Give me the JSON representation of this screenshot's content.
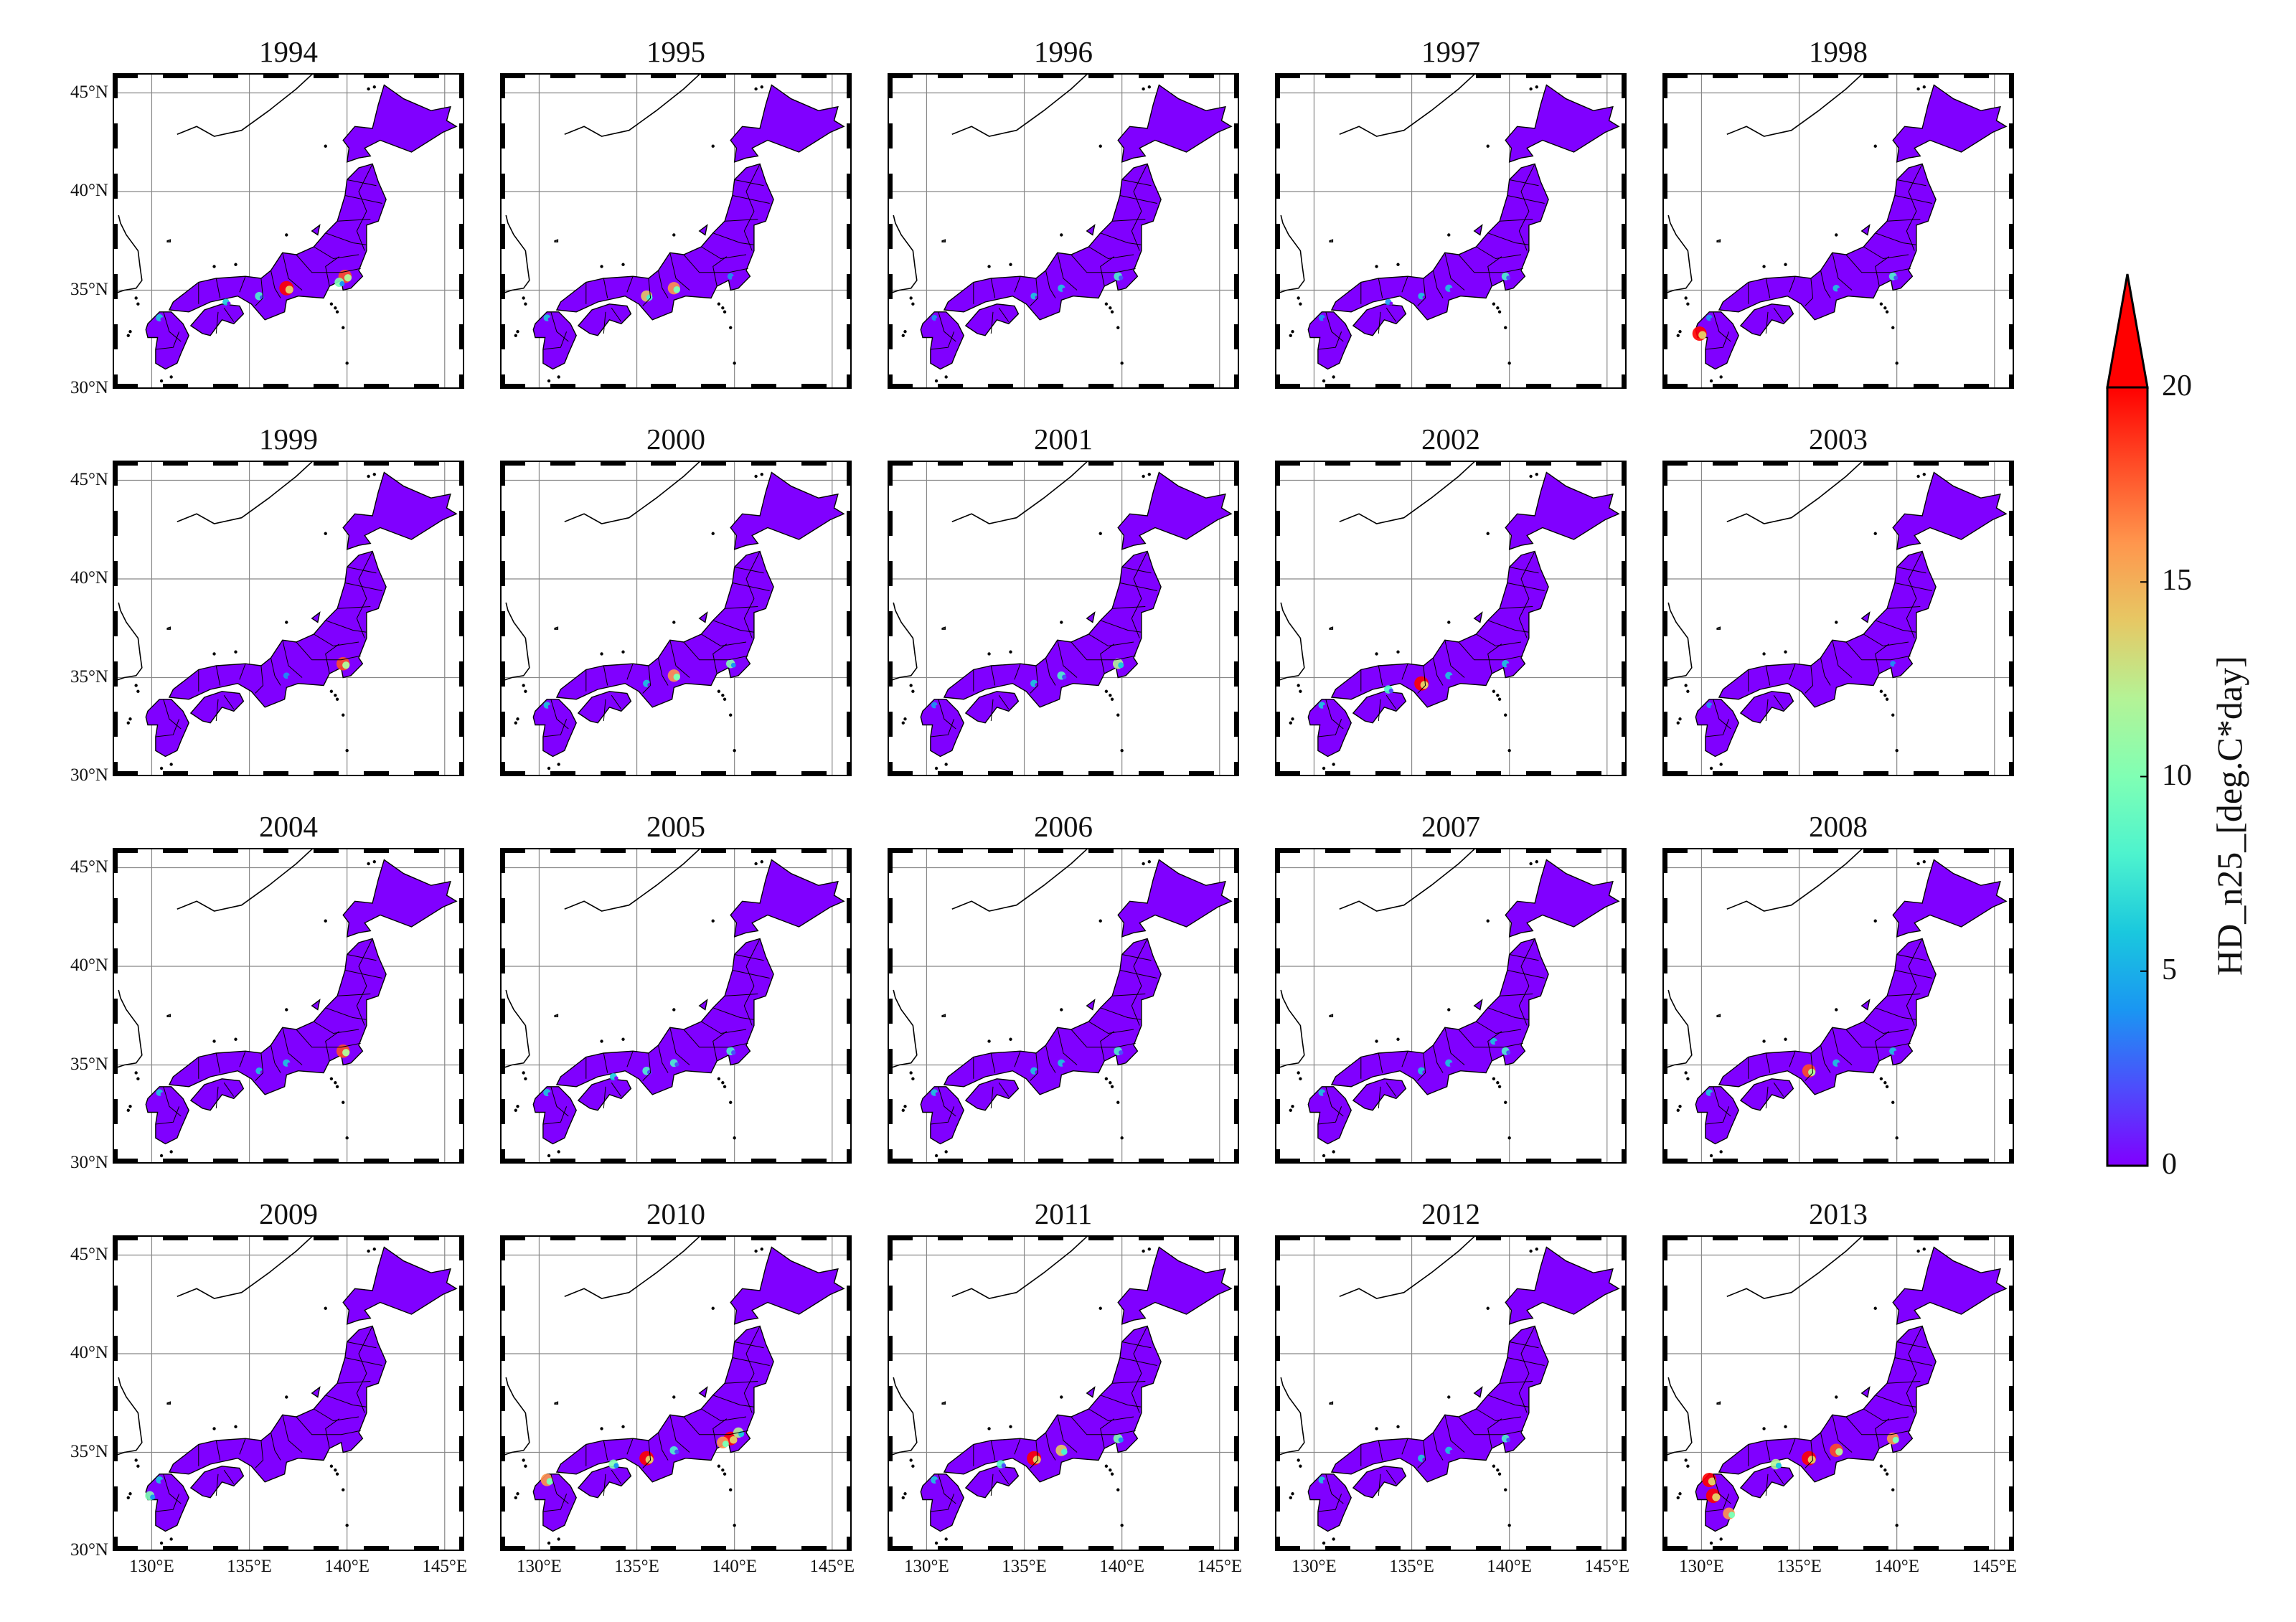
{
  "figure": {
    "panels": [
      {
        "year": "1994",
        "hotspots": [
          {
            "lon": 139.9,
            "lat": 35.7,
            "v": 18
          },
          {
            "lon": 139.6,
            "lat": 35.4,
            "v": 10
          },
          {
            "lon": 136.9,
            "lat": 35.1,
            "v": 20
          },
          {
            "lon": 135.5,
            "lat": 34.7,
            "v": 8
          },
          {
            "lon": 133.8,
            "lat": 34.4,
            "v": 5
          },
          {
            "lon": 130.4,
            "lat": 33.6,
            "v": 6
          }
        ]
      },
      {
        "year": "1995",
        "hotspots": [
          {
            "lon": 136.9,
            "lat": 35.1,
            "v": 16
          },
          {
            "lon": 135.5,
            "lat": 34.7,
            "v": 14
          },
          {
            "lon": 139.8,
            "lat": 35.7,
            "v": 4
          },
          {
            "lon": 130.4,
            "lat": 33.6,
            "v": 5
          }
        ]
      },
      {
        "year": "1996",
        "hotspots": [
          {
            "lon": 139.8,
            "lat": 35.7,
            "v": 8
          },
          {
            "lon": 136.9,
            "lat": 35.1,
            "v": 6
          },
          {
            "lon": 135.5,
            "lat": 34.7,
            "v": 5
          },
          {
            "lon": 130.4,
            "lat": 33.6,
            "v": 3
          }
        ]
      },
      {
        "year": "1997",
        "hotspots": [
          {
            "lon": 139.8,
            "lat": 35.7,
            "v": 7
          },
          {
            "lon": 136.9,
            "lat": 35.1,
            "v": 6
          },
          {
            "lon": 135.5,
            "lat": 34.7,
            "v": 5
          },
          {
            "lon": 133.8,
            "lat": 34.4,
            "v": 4
          },
          {
            "lon": 130.4,
            "lat": 33.6,
            "v": 4
          }
        ]
      },
      {
        "year": "1998",
        "hotspots": [
          {
            "lon": 139.8,
            "lat": 35.7,
            "v": 7
          },
          {
            "lon": 136.9,
            "lat": 35.1,
            "v": 5
          },
          {
            "lon": 130.4,
            "lat": 33.6,
            "v": 4
          },
          {
            "lon": 129.9,
            "lat": 32.8,
            "v": 20
          }
        ]
      },
      {
        "year": "1999",
        "hotspots": [
          {
            "lon": 139.8,
            "lat": 35.7,
            "v": 18
          },
          {
            "lon": 136.9,
            "lat": 35.1,
            "v": 4
          }
        ]
      },
      {
        "year": "2000",
        "hotspots": [
          {
            "lon": 139.8,
            "lat": 35.7,
            "v": 9
          },
          {
            "lon": 136.9,
            "lat": 35.1,
            "v": 16
          },
          {
            "lon": 135.5,
            "lat": 34.7,
            "v": 6
          },
          {
            "lon": 130.4,
            "lat": 33.6,
            "v": 5
          }
        ]
      },
      {
        "year": "2001",
        "hotspots": [
          {
            "lon": 139.8,
            "lat": 35.7,
            "v": 12
          },
          {
            "lon": 136.9,
            "lat": 35.1,
            "v": 8
          },
          {
            "lon": 135.5,
            "lat": 34.7,
            "v": 6
          },
          {
            "lon": 130.4,
            "lat": 33.6,
            "v": 4
          }
        ]
      },
      {
        "year": "2002",
        "hotspots": [
          {
            "lon": 139.8,
            "lat": 35.7,
            "v": 6
          },
          {
            "lon": 136.9,
            "lat": 35.1,
            "v": 6
          },
          {
            "lon": 135.5,
            "lat": 34.7,
            "v": 20
          },
          {
            "lon": 133.8,
            "lat": 34.4,
            "v": 8
          },
          {
            "lon": 130.4,
            "lat": 33.6,
            "v": 5
          }
        ]
      },
      {
        "year": "2003",
        "hotspots": [
          {
            "lon": 139.8,
            "lat": 35.7,
            "v": 3
          },
          {
            "lon": 130.4,
            "lat": 33.6,
            "v": 3
          }
        ]
      },
      {
        "year": "2004",
        "hotspots": [
          {
            "lon": 139.8,
            "lat": 35.7,
            "v": 18
          },
          {
            "lon": 136.9,
            "lat": 35.1,
            "v": 6
          },
          {
            "lon": 135.5,
            "lat": 34.7,
            "v": 5
          },
          {
            "lon": 130.4,
            "lat": 33.6,
            "v": 5
          }
        ]
      },
      {
        "year": "2005",
        "hotspots": [
          {
            "lon": 139.8,
            "lat": 35.7,
            "v": 8
          },
          {
            "lon": 136.9,
            "lat": 35.1,
            "v": 7
          },
          {
            "lon": 135.5,
            "lat": 34.7,
            "v": 8
          },
          {
            "lon": 133.8,
            "lat": 34.4,
            "v": 6
          },
          {
            "lon": 130.4,
            "lat": 33.6,
            "v": 6
          }
        ]
      },
      {
        "year": "2006",
        "hotspots": [
          {
            "lon": 139.8,
            "lat": 35.7,
            "v": 8
          },
          {
            "lon": 136.9,
            "lat": 35.1,
            "v": 6
          },
          {
            "lon": 135.5,
            "lat": 34.7,
            "v": 6
          },
          {
            "lon": 130.4,
            "lat": 33.6,
            "v": 5
          }
        ]
      },
      {
        "year": "2007",
        "hotspots": [
          {
            "lon": 139.8,
            "lat": 35.7,
            "v": 7
          },
          {
            "lon": 139.2,
            "lat": 36.2,
            "v": 5
          },
          {
            "lon": 136.9,
            "lat": 35.1,
            "v": 6
          },
          {
            "lon": 135.5,
            "lat": 34.7,
            "v": 6
          },
          {
            "lon": 130.4,
            "lat": 33.6,
            "v": 5
          }
        ]
      },
      {
        "year": "2008",
        "hotspots": [
          {
            "lon": 139.8,
            "lat": 35.7,
            "v": 6
          },
          {
            "lon": 136.9,
            "lat": 35.1,
            "v": 6
          },
          {
            "lon": 135.5,
            "lat": 34.7,
            "v": 18
          },
          {
            "lon": 130.4,
            "lat": 33.6,
            "v": 5
          }
        ]
      },
      {
        "year": "2009",
        "hotspots": [
          {
            "lon": 129.9,
            "lat": 32.8,
            "v": 10
          },
          {
            "lon": 130.4,
            "lat": 33.6,
            "v": 6
          }
        ]
      },
      {
        "year": "2010",
        "hotspots": [
          {
            "lon": 139.8,
            "lat": 35.7,
            "v": 19
          },
          {
            "lon": 139.4,
            "lat": 35.5,
            "v": 15
          },
          {
            "lon": 140.2,
            "lat": 36.0,
            "v": 12
          },
          {
            "lon": 136.9,
            "lat": 35.1,
            "v": 8
          },
          {
            "lon": 135.5,
            "lat": 34.7,
            "v": 20
          },
          {
            "lon": 133.8,
            "lat": 34.4,
            "v": 10
          },
          {
            "lon": 130.4,
            "lat": 33.6,
            "v": 16
          }
        ]
      },
      {
        "year": "2011",
        "hotspots": [
          {
            "lon": 139.8,
            "lat": 35.7,
            "v": 10
          },
          {
            "lon": 136.9,
            "lat": 35.1,
            "v": 14
          },
          {
            "lon": 135.5,
            "lat": 34.7,
            "v": 20
          },
          {
            "lon": 133.8,
            "lat": 34.4,
            "v": 8
          },
          {
            "lon": 130.4,
            "lat": 33.6,
            "v": 6
          }
        ]
      },
      {
        "year": "2012",
        "hotspots": [
          {
            "lon": 139.8,
            "lat": 35.7,
            "v": 7
          },
          {
            "lon": 136.9,
            "lat": 35.1,
            "v": 6
          },
          {
            "lon": 135.5,
            "lat": 34.7,
            "v": 6
          },
          {
            "lon": 130.4,
            "lat": 33.6,
            "v": 5
          }
        ]
      },
      {
        "year": "2013",
        "hotspots": [
          {
            "lon": 139.8,
            "lat": 35.7,
            "v": 15
          },
          {
            "lon": 136.9,
            "lat": 35.1,
            "v": 18
          },
          {
            "lon": 135.5,
            "lat": 34.7,
            "v": 20
          },
          {
            "lon": 133.8,
            "lat": 34.4,
            "v": 12
          },
          {
            "lon": 130.6,
            "lat": 32.8,
            "v": 20
          },
          {
            "lon": 130.4,
            "lat": 33.6,
            "v": 20
          },
          {
            "lon": 131.4,
            "lat": 31.9,
            "v": 15
          }
        ]
      }
    ],
    "lat_ticks": [
      {
        "value": 30,
        "label": "30°N"
      },
      {
        "value": 35,
        "label": "35°N"
      },
      {
        "value": 40,
        "label": "40°N"
      },
      {
        "value": 45,
        "label": "45°N"
      }
    ],
    "lon_ticks": [
      {
        "value": 130,
        "label": "130°E"
      },
      {
        "value": 135,
        "label": "135°E"
      },
      {
        "value": 140,
        "label": "140°E"
      },
      {
        "value": 145,
        "label": "145°E"
      }
    ],
    "extent": {
      "lon_min": 128,
      "lon_max": 146,
      "lat_min": 30,
      "lat_max": 46
    },
    "colors": {
      "land": "#8000ff",
      "border": "#000000",
      "coast": "#000000",
      "grid": "#888888",
      "frame": "#000000"
    }
  },
  "colorbar": {
    "label": "HD_n25_[deg.C*day]",
    "min": 0,
    "max": 20,
    "extend": "max",
    "ticks": [
      {
        "value": 0,
        "label": "0"
      },
      {
        "value": 5,
        "label": "5"
      },
      {
        "value": 10,
        "label": "10"
      },
      {
        "value": 15,
        "label": "15"
      },
      {
        "value": 20,
        "label": "20"
      }
    ],
    "colormap": [
      "#8000ff",
      "#4d4dfc",
      "#1a96f2",
      "#1ac8de",
      "#4df3ce",
      "#80ffb4",
      "#b4f396",
      "#e6c864",
      "#ff964d",
      "#ff4d27",
      "#ff0000"
    ],
    "over_color": "#ff0000"
  }
}
